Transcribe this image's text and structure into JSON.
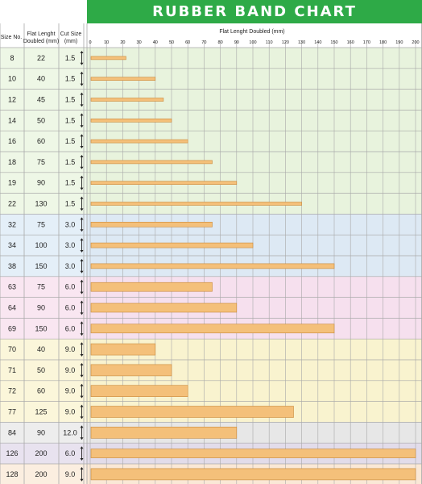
{
  "title": "RUBBER BAND CHART",
  "headers": {
    "size_no": "Size No.",
    "flat_line1": "Flat Lenght",
    "flat_line2": "Doubled (mm)",
    "cut_line1": "Cut Size",
    "cut_line2": "(mm)",
    "axis_title": "Flat Lenght Doubled (mm)"
  },
  "colors": {
    "title_bg": "#2eaa47",
    "bar": "#f4c07a",
    "bar_edge": "#c9893a",
    "grid": "#a9a9a9",
    "group_bg": [
      "#e8f3dd",
      "#dde9f4",
      "#f6e0ee",
      "#f9f3cf",
      "#e7e7e7",
      "#e2dcea",
      "#fae8d6"
    ],
    "label_bg": [
      "#eef7e6",
      "#e4eff8",
      "#f9e6f1",
      "#fbf6da",
      "#ededed",
      "#e8e2ef",
      "#fbeee0"
    ]
  },
  "chart_data": {
    "type": "bar",
    "orientation": "horizontal",
    "title": "RUBBER BAND CHART",
    "xlabel": "Flat Lenght Doubled (mm)",
    "xlim": [
      0,
      200
    ],
    "xticks": [
      0,
      10,
      20,
      30,
      40,
      50,
      60,
      70,
      80,
      90,
      100,
      110,
      120,
      130,
      140,
      150,
      160,
      170,
      180,
      190,
      200
    ],
    "grid": true,
    "columns": [
      "Size No.",
      "Flat Lenght Doubled (mm)",
      "Cut Size (mm)"
    ],
    "rows": [
      {
        "size": "8",
        "flat": 22,
        "cut": "1.5",
        "group": 0
      },
      {
        "size": "10",
        "flat": 40,
        "cut": "1.5",
        "group": 0
      },
      {
        "size": "12",
        "flat": 45,
        "cut": "1.5",
        "group": 0
      },
      {
        "size": "14",
        "flat": 50,
        "cut": "1.5",
        "group": 0
      },
      {
        "size": "16",
        "flat": 60,
        "cut": "1.5",
        "group": 0
      },
      {
        "size": "18",
        "flat": 75,
        "cut": "1.5",
        "group": 0
      },
      {
        "size": "19",
        "flat": 90,
        "cut": "1.5",
        "group": 0
      },
      {
        "size": "22",
        "flat": 130,
        "cut": "1.5",
        "group": 0
      },
      {
        "size": "32",
        "flat": 75,
        "cut": "3.0",
        "group": 1
      },
      {
        "size": "34",
        "flat": 100,
        "cut": "3.0",
        "group": 1
      },
      {
        "size": "38",
        "flat": 150,
        "cut": "3.0",
        "group": 1
      },
      {
        "size": "63",
        "flat": 75,
        "cut": "6.0",
        "group": 2
      },
      {
        "size": "64",
        "flat": 90,
        "cut": "6.0",
        "group": 2
      },
      {
        "size": "69",
        "flat": 150,
        "cut": "6.0",
        "group": 2
      },
      {
        "size": "70",
        "flat": 40,
        "cut": "9.0",
        "group": 3
      },
      {
        "size": "71",
        "flat": 50,
        "cut": "9.0",
        "group": 3
      },
      {
        "size": "72",
        "flat": 60,
        "cut": "9.0",
        "group": 3
      },
      {
        "size": "77",
        "flat": 125,
        "cut": "9.0",
        "group": 3
      },
      {
        "size": "84",
        "flat": 90,
        "cut": "12.0",
        "group": 4
      },
      {
        "size": "126",
        "flat": 200,
        "cut": "6.0",
        "group": 5
      },
      {
        "size": "128",
        "flat": 200,
        "cut": "9.0",
        "group": 6
      }
    ]
  }
}
